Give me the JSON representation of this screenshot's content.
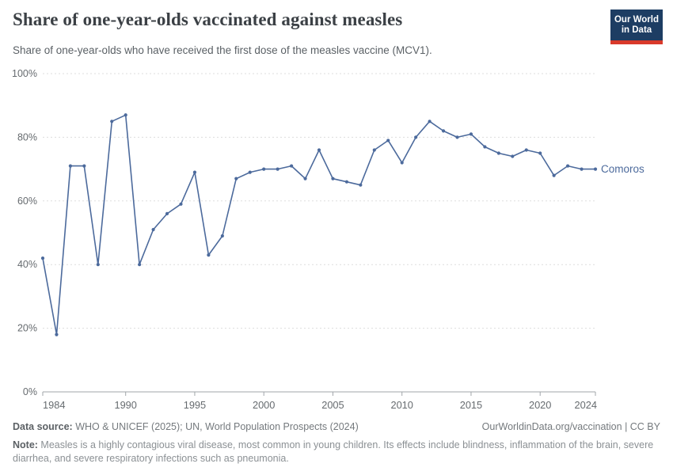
{
  "header": {
    "title": "Share of one-year-olds vaccinated against measles",
    "subtitle": "Share of one-year-olds who have received the first dose of the measles vaccine (MCV1).",
    "logo": {
      "line1": "Our World",
      "line2": "in Data",
      "bg_color": "#1d3d63",
      "bar_color": "#d93a2b"
    }
  },
  "chart_data": {
    "type": "line",
    "title": "Share of one-year-olds vaccinated against measles",
    "xlabel": "",
    "ylabel": "",
    "xlim": [
      1984,
      2024
    ],
    "ylim": [
      0,
      100
    ],
    "grid": "horizontal-dashed",
    "legend_position": "end-of-line-label",
    "x_ticks": [
      1984,
      1990,
      1995,
      2000,
      2005,
      2010,
      2015,
      2020,
      2024
    ],
    "x_tick_labels": [
      "1984",
      "1990",
      "1995",
      "2000",
      "2005",
      "2010",
      "2015",
      "2020",
      "2024"
    ],
    "y_ticks": [
      0,
      20,
      40,
      60,
      80,
      100
    ],
    "y_tick_labels": [
      "0%",
      "20%",
      "40%",
      "60%",
      "80%",
      "100%"
    ],
    "series": [
      {
        "name": "Comoros",
        "color": "#4c6a9c",
        "x": [
          1984,
          1985,
          1986,
          1987,
          1988,
          1989,
          1990,
          1991,
          1992,
          1993,
          1994,
          1995,
          1996,
          1997,
          1998,
          1999,
          2000,
          2001,
          2002,
          2003,
          2004,
          2005,
          2006,
          2007,
          2008,
          2009,
          2010,
          2011,
          2012,
          2013,
          2014,
          2015,
          2016,
          2017,
          2018,
          2019,
          2020,
          2021,
          2022,
          2023,
          2024
        ],
        "values": [
          42,
          18,
          71,
          71,
          40,
          85,
          87,
          40,
          51,
          56,
          59,
          69,
          43,
          49,
          67,
          69,
          70,
          70,
          71,
          67,
          76,
          67,
          66,
          65,
          76,
          79,
          72,
          80,
          85,
          82,
          80,
          81,
          77,
          75,
          74,
          76,
          75,
          68,
          71,
          70,
          70
        ]
      }
    ],
    "end_label": "Comoros",
    "colors": {
      "gridline": "#dddddd",
      "axis": "#a1a6aa",
      "tick_label": "#666b6f"
    }
  },
  "footer": {
    "data_source_label": "Data source:",
    "data_source_text": " WHO & UNICEF (2025); UN, World Population Prospects (2024)",
    "citation": "OurWorldinData.org/vaccination | CC BY",
    "note_label": "Note:",
    "note_text": " Measles is a highly contagious viral disease, most common in young children. Its effects include blindness, inflammation of the brain, severe diarrhea, and severe respiratory infections such as pneumonia."
  }
}
